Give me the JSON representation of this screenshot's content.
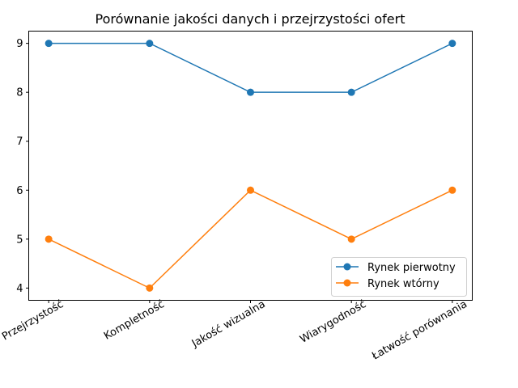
{
  "chart_data": {
    "type": "line",
    "title": "Porównanie jakości danych i przejrzystości ofert",
    "xlabel": "",
    "ylabel": "",
    "categories": [
      "Przejrzystość",
      "Kompletność",
      "Jakość wizualna",
      "Wiarygodność",
      "Łatwość porównania"
    ],
    "series": [
      {
        "name": "Rynek pierwotny",
        "values": [
          9,
          9,
          8,
          8,
          9
        ],
        "color": "#1f77b4"
      },
      {
        "name": "Rynek wtórny",
        "values": [
          5,
          4,
          6,
          5,
          6
        ],
        "color": "#ff7f0e"
      }
    ],
    "yticks": [
      4,
      5,
      6,
      7,
      8,
      9
    ],
    "ylim": [
      3.75,
      9.25
    ],
    "grid": false,
    "legend_position": "lower right",
    "xtick_rotation": 30
  }
}
